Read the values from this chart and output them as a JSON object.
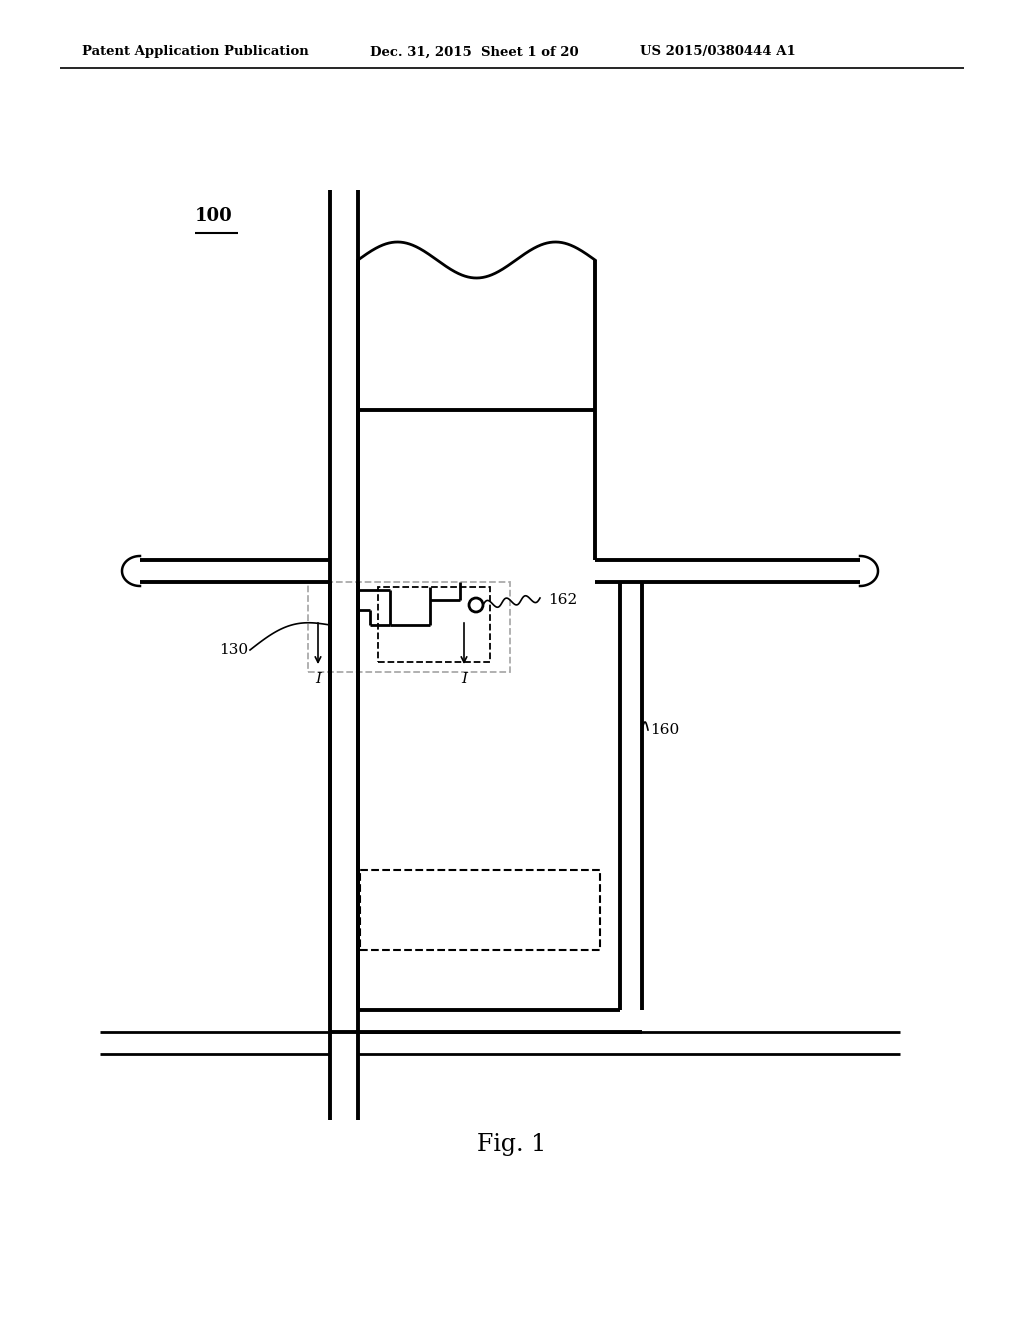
{
  "bg_color": "#ffffff",
  "line_color": "#000000",
  "header_left": "Patent Application Publication",
  "header_mid": "Dec. 31, 2015  Sheet 1 of 20",
  "header_right": "US 2015/0380444 A1",
  "fig_label": "Fig. 1",
  "label_100": "100",
  "label_130": "130",
  "label_160": "160",
  "label_162": "162"
}
